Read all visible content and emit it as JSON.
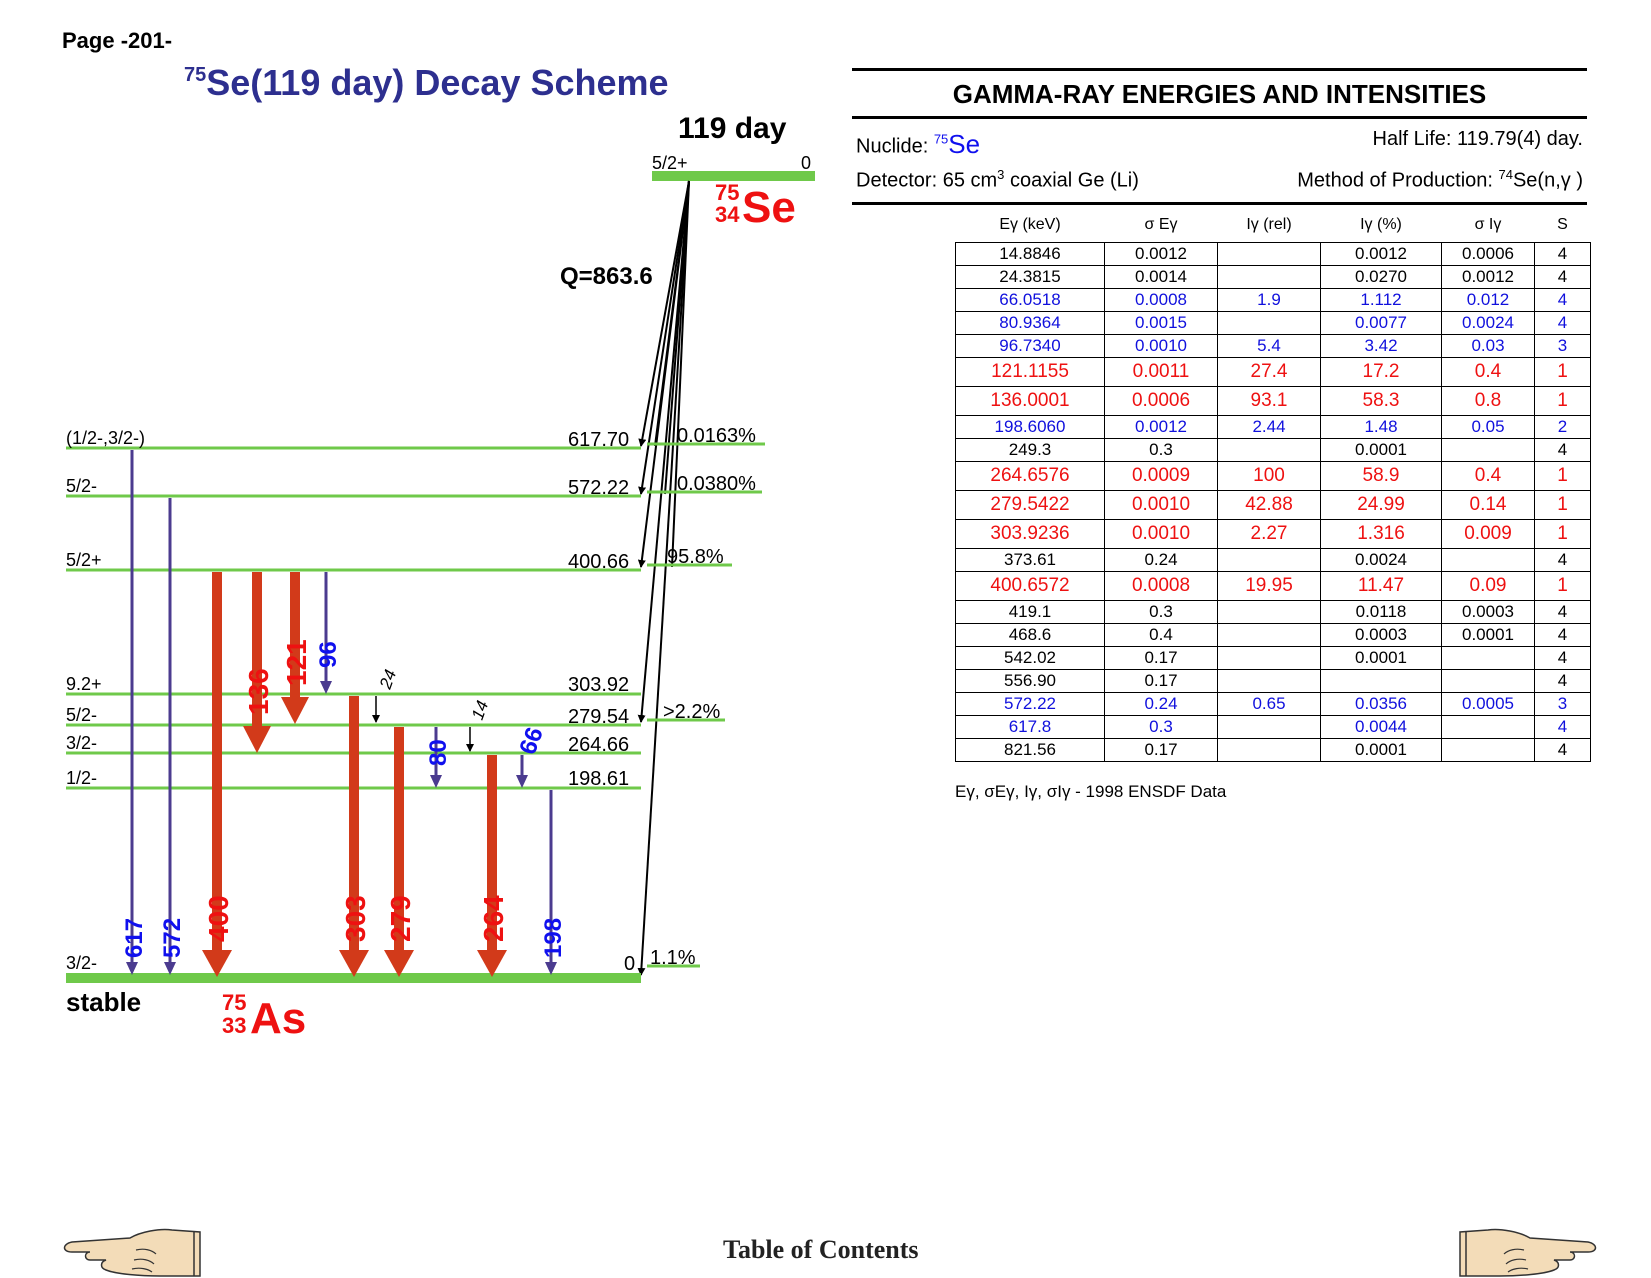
{
  "page_label": "Page -201-",
  "scheme": {
    "title_mass": "75",
    "title_text": "Se(119 day) Decay Scheme",
    "parent": {
      "half_life": "119 day",
      "spin": "5/2+",
      "energy": "0",
      "mass": "75",
      "z": "34",
      "symbol": "Se"
    },
    "q_value": "Q=863.6",
    "daughter": {
      "stability": "stable",
      "mass": "75",
      "z": "33",
      "symbol": "As"
    },
    "levels": [
      {
        "spin": "(1/2-,3/2-)",
        "energy": "617.70",
        "branch": "0.0163%"
      },
      {
        "spin": "5/2-",
        "energy": "572.22",
        "branch": "0.0380%"
      },
      {
        "spin": "5/2+",
        "energy": "400.66",
        "branch": "95.8%"
      },
      {
        "spin": "9.2+",
        "energy": "303.92",
        "branch": ""
      },
      {
        "spin": "5/2-",
        "energy": "279.54",
        "branch": ">2.2%"
      },
      {
        "spin": "3/2-",
        "energy": "264.66",
        "branch": ""
      },
      {
        "spin": "1/2-",
        "energy": "198.61",
        "branch": ""
      },
      {
        "spin": "3/2-",
        "energy": "0",
        "branch": "1.1%"
      }
    ],
    "transitions": [
      {
        "label": "617",
        "from": "617.70",
        "to": "0",
        "color": "blue",
        "strength": "weak"
      },
      {
        "label": "572",
        "from": "572.22",
        "to": "0",
        "color": "blue",
        "strength": "weak"
      },
      {
        "label": "400",
        "from": "400.66",
        "to": "0",
        "color": "red",
        "strength": "strong"
      },
      {
        "label": "136",
        "from": "400.66",
        "to": "264.66",
        "color": "red",
        "strength": "strong"
      },
      {
        "label": "121",
        "from": "400.66",
        "to": "279.54",
        "color": "red",
        "strength": "strong"
      },
      {
        "label": "96",
        "from": "400.66",
        "to": "303.92",
        "color": "blue",
        "strength": "weak"
      },
      {
        "label": "24",
        "from": "303.92",
        "to": "279.54",
        "color": "black",
        "strength": "thin"
      },
      {
        "label": "303",
        "from": "303.92",
        "to": "0",
        "color": "red",
        "strength": "strong"
      },
      {
        "label": "279",
        "from": "279.54",
        "to": "0",
        "color": "red",
        "strength": "strong"
      },
      {
        "label": "80",
        "from": "279.54",
        "to": "198.61",
        "color": "blue",
        "strength": "weak"
      },
      {
        "label": "14",
        "from": "279.54",
        "to": "264.66",
        "color": "black",
        "strength": "thin"
      },
      {
        "label": "264",
        "from": "264.66",
        "to": "0",
        "color": "red",
        "strength": "strong"
      },
      {
        "label": "66",
        "from": "264.66",
        "to": "198.61",
        "color": "blue",
        "strength": "weak"
      },
      {
        "label": "198",
        "from": "198.61",
        "to": "0",
        "color": "blue",
        "strength": "weak"
      }
    ]
  },
  "gamma": {
    "title": "GAMMA-RAY ENERGIES AND INTENSITIES",
    "nuclide_label": "Nuclide: ",
    "nuclide_mass": "75",
    "nuclide_symbol": "Se",
    "half_life": "Half Life: 119.79(4) day.",
    "detector_pre": "Detector: 65 cm",
    "detector_sup": "3",
    "detector_post": " coaxial Ge (Li)",
    "production_pre": "Method of Production: ",
    "production_sup": "74",
    "production_post": "Se(n,γ )",
    "headers": [
      "Eγ (keV)",
      "σ Eγ",
      "Iγ (rel)",
      "Iγ (%)",
      "σ Iγ",
      "S"
    ],
    "rows": [
      {
        "e": "14.8846",
        "se": "0.0012",
        "irel": "",
        "ipct": "0.0012",
        "si": "0.0006",
        "s": "4",
        "color": "black"
      },
      {
        "e": "24.3815",
        "se": "0.0014",
        "irel": "",
        "ipct": "0.0270",
        "si": "0.0012",
        "s": "4",
        "color": "black"
      },
      {
        "e": "66.0518",
        "se": "0.0008",
        "irel": "1.9",
        "ipct": "1.112",
        "si": "0.012",
        "s": "4",
        "color": "blue"
      },
      {
        "e": "80.9364",
        "se": "0.0015",
        "irel": "",
        "ipct": "0.0077",
        "si": "0.0024",
        "s": "4",
        "color": "blue"
      },
      {
        "e": "96.7340",
        "se": "0.0010",
        "irel": "5.4",
        "ipct": "3.42",
        "si": "0.03",
        "s": "3",
        "color": "blue"
      },
      {
        "e": "121.1155",
        "se": "0.0011",
        "irel": "27.4",
        "ipct": "17.2",
        "si": "0.4",
        "s": "1",
        "color": "red"
      },
      {
        "e": "136.0001",
        "se": "0.0006",
        "irel": "93.1",
        "ipct": "58.3",
        "si": "0.8",
        "s": "1",
        "color": "red"
      },
      {
        "e": "198.6060",
        "se": "0.0012",
        "irel": "2.44",
        "ipct": "1.48",
        "si": "0.05",
        "s": "2",
        "color": "blue"
      },
      {
        "e": "249.3",
        "se": "0.3",
        "irel": "",
        "ipct": "0.0001",
        "si": "",
        "s": "4",
        "color": "black"
      },
      {
        "e": "264.6576",
        "se": "0.0009",
        "irel": "100",
        "ipct": "58.9",
        "si": "0.4",
        "s": "1",
        "color": "red"
      },
      {
        "e": "279.5422",
        "se": "0.0010",
        "irel": "42.88",
        "ipct": "24.99",
        "si": "0.14",
        "s": "1",
        "color": "red"
      },
      {
        "e": "303.9236",
        "se": "0.0010",
        "irel": "2.27",
        "ipct": "1.316",
        "si": "0.009",
        "s": "1",
        "color": "red"
      },
      {
        "e": "373.61",
        "se": "0.24",
        "irel": "",
        "ipct": "0.0024",
        "si": "",
        "s": "4",
        "color": "black"
      },
      {
        "e": "400.6572",
        "se": "0.0008",
        "irel": "19.95",
        "ipct": "11.47",
        "si": "0.09",
        "s": "1",
        "color": "red"
      },
      {
        "e": "419.1",
        "se": "0.3",
        "irel": "",
        "ipct": "0.0118",
        "si": "0.0003",
        "s": "4",
        "color": "black"
      },
      {
        "e": "468.6",
        "se": "0.4",
        "irel": "",
        "ipct": "0.0003",
        "si": "0.0001",
        "s": "4",
        "color": "black"
      },
      {
        "e": "542.02",
        "se": "0.17",
        "irel": "",
        "ipct": "0.0001",
        "si": "",
        "s": "4",
        "color": "black"
      },
      {
        "e": "556.90",
        "se": "0.17",
        "irel": "",
        "ipct": "",
        "si": "",
        "s": "4",
        "color": "black"
      },
      {
        "e": "572.22",
        "se": "0.24",
        "irel": "0.65",
        "ipct": "0.0356",
        "si": "0.0005",
        "s": "3",
        "color": "blue"
      },
      {
        "e": "617.8",
        "se": "0.3",
        "irel": "",
        "ipct": "0.0044",
        "si": "",
        "s": "4",
        "color": "blue"
      },
      {
        "e": "821.56",
        "se": "0.17",
        "irel": "",
        "ipct": "0.0001",
        "si": "",
        "s": "4",
        "color": "black"
      }
    ],
    "source_note": "Eγ, σEγ, Iγ, σIγ - 1998 ENSDF Data"
  },
  "footer": {
    "toc_label": "Table of Contents",
    "prev_icon": "hand-pointing-left-icon",
    "next_icon": "hand-pointing-right-icon"
  },
  "colors": {
    "level": "#6fc94a",
    "strong": "#d23a1a",
    "weak": "#4b3b8f",
    "red_text": "#ee1111",
    "blue_text": "#1010ee",
    "title": "#2d2f8f"
  }
}
